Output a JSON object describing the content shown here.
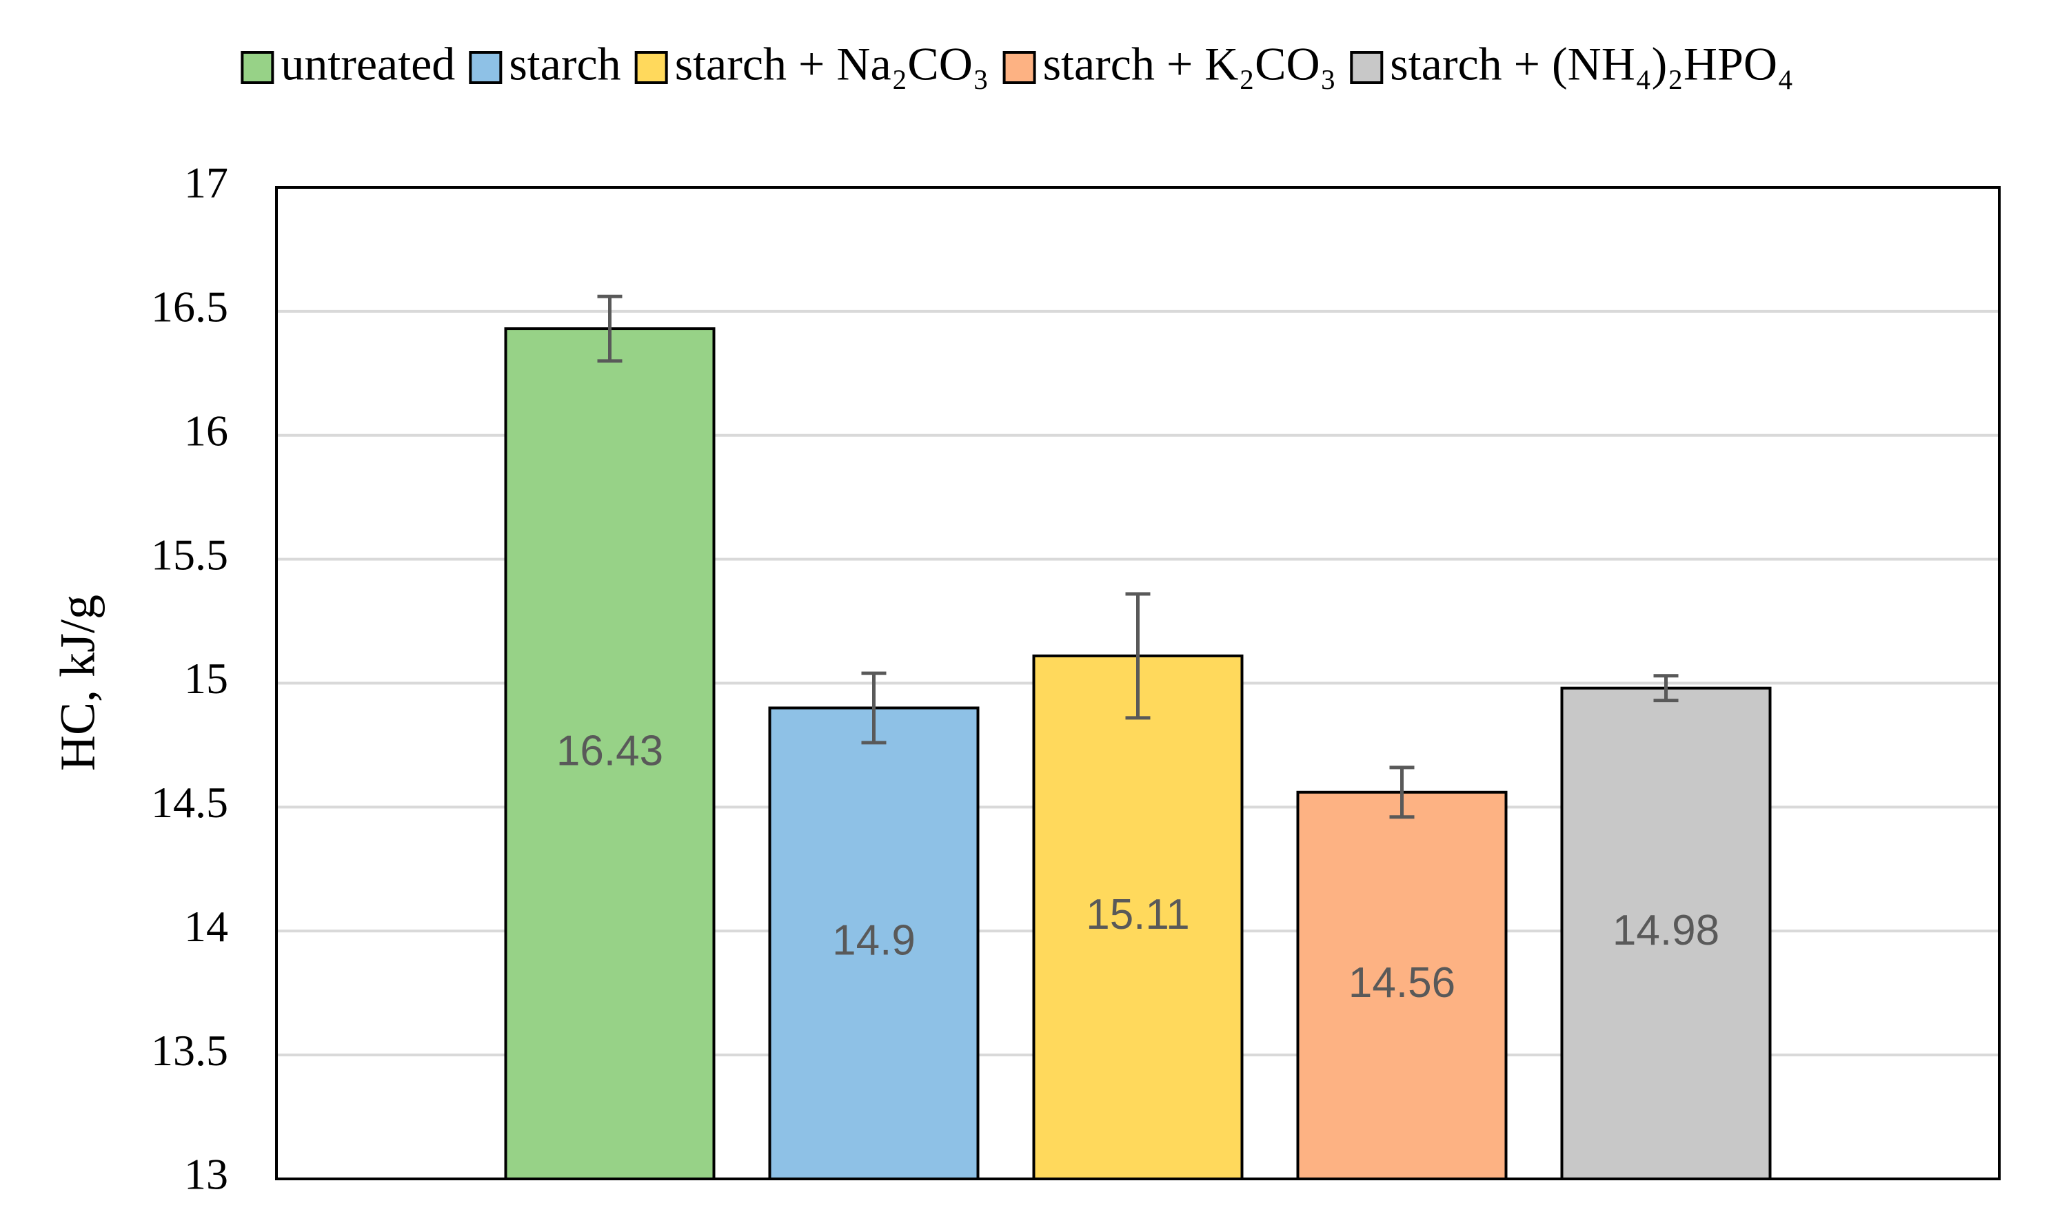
{
  "chart_data": {
    "type": "bar",
    "y_label": "HC, kJ/g",
    "categories": [
      null
    ],
    "series": [
      {
        "name": "untreated",
        "color": "#97d287",
        "values": [
          16.43
        ],
        "errors": [
          0.13
        ]
      },
      {
        "name": "starch",
        "color": "#8ec1e6",
        "values": [
          14.9
        ],
        "errors": [
          0.14
        ]
      },
      {
        "name": "starch + Na₂CO₃",
        "color": "#ffd95c",
        "values": [
          15.11
        ],
        "errors": [
          0.25
        ]
      },
      {
        "name": "starch + K₂CO₃",
        "color": "#fdb283",
        "values": [
          14.56
        ],
        "errors": [
          0.1
        ]
      },
      {
        "name": "starch + (NH₄)₂HPO₄",
        "color": "#c8c8c8",
        "values": [
          14.98
        ],
        "errors": [
          0.05
        ]
      }
    ],
    "ylim": [
      13,
      17
    ],
    "yticks": [
      13,
      13.5,
      14,
      14.5,
      15,
      15.5,
      16,
      16.5,
      17
    ],
    "grid": true,
    "legend": "top"
  }
}
